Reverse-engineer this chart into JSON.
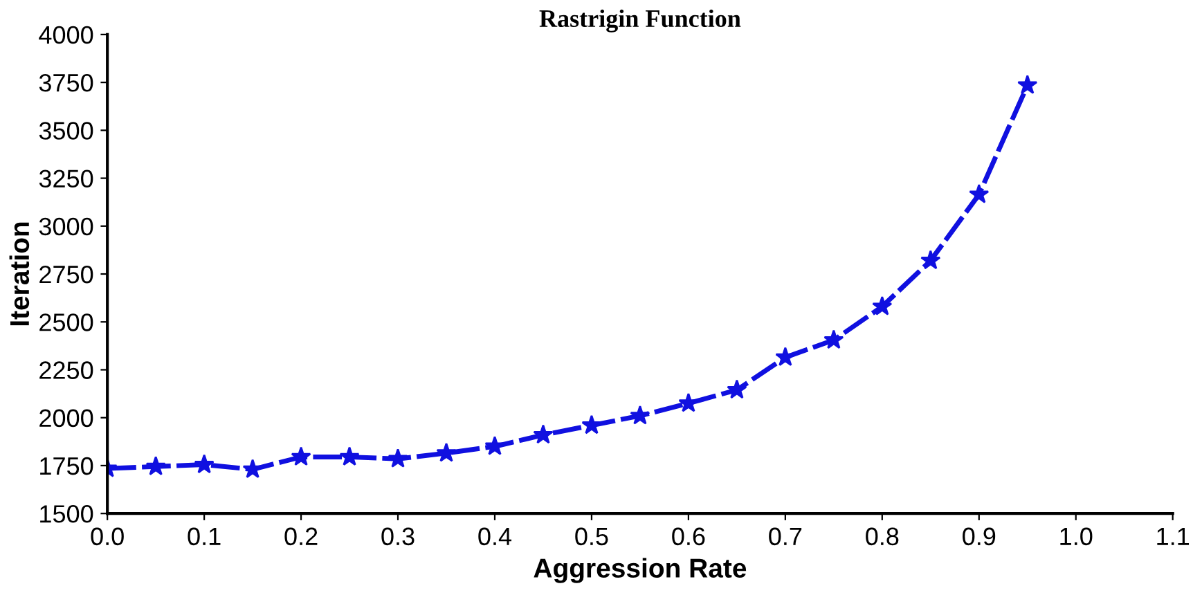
{
  "chart_data": {
    "type": "line",
    "title": "Rastrigin Function",
    "xlabel": "Aggression Rate",
    "ylabel": "Iteration",
    "x": [
      0.0,
      0.05,
      0.1,
      0.15,
      0.2,
      0.25,
      0.3,
      0.35,
      0.4,
      0.45,
      0.5,
      0.55,
      0.6,
      0.65,
      0.7,
      0.75,
      0.8,
      0.85,
      0.9,
      0.95
    ],
    "series": [
      {
        "color": "#1010e0",
        "values": [
          1735,
          1745,
          1755,
          1730,
          1795,
          1795,
          1785,
          1815,
          1850,
          1910,
          1960,
          2010,
          2075,
          2145,
          2315,
          2405,
          2580,
          2820,
          3165,
          3735
        ]
      }
    ],
    "xlim": [
      0.0,
      1.1
    ],
    "xticks": [
      {
        "value": 0.0,
        "label": "0.0"
      },
      0.1,
      0.2,
      0.3,
      0.4,
      0.5,
      0.6,
      0.7,
      0.8,
      0.9,
      {
        "value": 1.0,
        "label": "1.0"
      },
      1.1
    ],
    "ylim": [
      1500,
      4000
    ],
    "yticks": [
      1500,
      1750,
      2000,
      2250,
      2500,
      2750,
      3000,
      3250,
      3500,
      3750,
      4000
    ],
    "marker": "star",
    "line_style": "dashed",
    "grid": false
  }
}
